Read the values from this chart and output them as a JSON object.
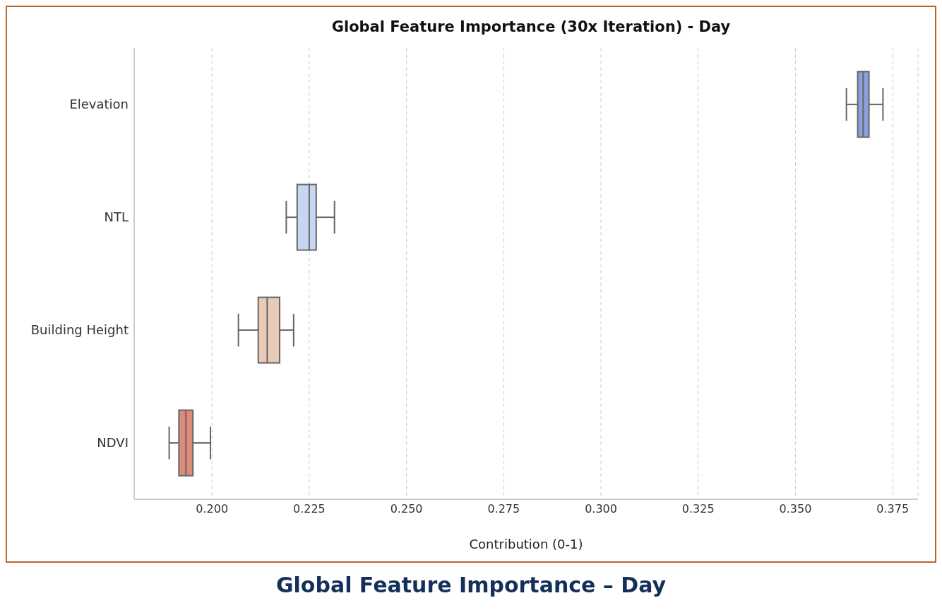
{
  "chart_data": {
    "type": "box",
    "orientation": "horizontal",
    "title": "Global Feature Importance (30x Iteration) - Day",
    "xlabel": "Contribution (0-1)",
    "categories": [
      "Elevation",
      "NTL",
      "Building Height",
      "NDVI"
    ],
    "colors": [
      "#8a9fe0",
      "#c7d6f2",
      "#eac9b6",
      "#dc8b78"
    ],
    "boxes": [
      {
        "low": 0.3631,
        "q1": 0.366,
        "median": 0.3674,
        "q3": 0.3689,
        "high": 0.3725
      },
      {
        "low": 0.2191,
        "q1": 0.2219,
        "median": 0.225,
        "q3": 0.2268,
        "high": 0.2315
      },
      {
        "low": 0.2068,
        "q1": 0.2119,
        "median": 0.2142,
        "q3": 0.2174,
        "high": 0.221
      },
      {
        "low": 0.189,
        "q1": 0.1915,
        "median": 0.1933,
        "q3": 0.1951,
        "high": 0.1996
      }
    ],
    "xlim": [
      0.18,
      0.3815
    ],
    "xticks": [
      {
        "value": 0.2,
        "label": "0.200"
      },
      {
        "value": 0.225,
        "label": "0.225"
      },
      {
        "value": 0.25,
        "label": "0.250"
      },
      {
        "value": 0.275,
        "label": "0.275"
      },
      {
        "value": 0.3,
        "label": "0.300"
      },
      {
        "value": 0.325,
        "label": "0.325"
      },
      {
        "value": 0.35,
        "label": "0.350"
      },
      {
        "value": 0.375,
        "label": "0.375"
      }
    ],
    "grid": "x",
    "legend": false,
    "annotations": [
      "Global Feature Importance – Day"
    ]
  }
}
